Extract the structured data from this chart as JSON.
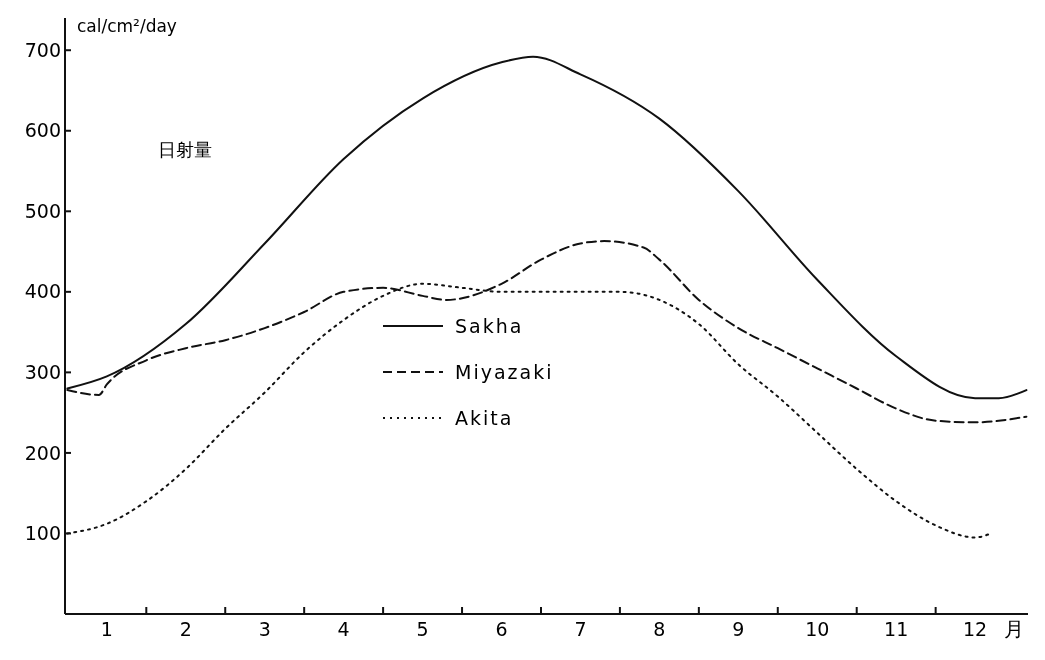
{
  "chart_data": {
    "type": "line",
    "ylabel": "cal/cm²/day",
    "xlabel": "月",
    "annotations": [
      "日射量"
    ],
    "legend": "center",
    "grid": false,
    "marker": "none",
    "xlim": [
      0.47,
      12.67
    ],
    "ylim": [
      0,
      740
    ],
    "xticks": [
      1,
      {
        "value": 1.5,
        "label": null
      },
      2,
      {
        "value": 2.5,
        "label": null
      },
      3,
      {
        "value": 3.5,
        "label": null
      },
      4,
      {
        "value": 4.5,
        "label": null
      },
      5,
      {
        "value": 5.5,
        "label": null
      },
      6,
      {
        "value": 6.5,
        "label": null
      },
      7,
      {
        "value": 7.5,
        "label": null
      },
      8,
      {
        "value": 8.5,
        "label": null
      },
      9,
      {
        "value": 9.5,
        "label": null
      },
      10,
      {
        "value": 10.5,
        "label": null
      },
      11,
      {
        "value": 11.5,
        "label": null
      },
      12
    ],
    "yticks": [
      100,
      200,
      300,
      400,
      500,
      600,
      700
    ],
    "series": [
      {
        "name": "Sakha",
        "color": "#111111",
        "line_style": "solid",
        "x": [
          0.5,
          1,
          2,
          3,
          4,
          5,
          6,
          6.4,
          7,
          8,
          9,
          10,
          11,
          12,
          12.3,
          12.65
        ],
        "values": [
          280,
          295,
          360,
          460,
          565,
          640,
          685,
          692,
          670,
          615,
          525,
          415,
          320,
          268,
          268,
          278
        ]
      },
      {
        "name": "Miyazaki",
        "color": "#111111",
        "line_style": "dashed",
        "x": [
          0.5,
          0.9,
          1,
          1.5,
          2,
          2.5,
          3,
          3.5,
          4,
          4.5,
          5,
          5.3,
          6,
          6.5,
          7,
          7.3,
          7.8,
          8,
          8.5,
          9,
          9.5,
          10,
          10.5,
          11,
          11.5,
          12,
          12.65
        ],
        "values": [
          278,
          272,
          285,
          315,
          330,
          340,
          355,
          375,
          400,
          405,
          395,
          390,
          410,
          440,
          460,
          463,
          455,
          440,
          390,
          355,
          330,
          305,
          280,
          255,
          240,
          238,
          245
        ]
      },
      {
        "name": "Akita",
        "color": "#111111",
        "line_style": "dotted",
        "x": [
          0.5,
          1,
          1.5,
          2,
          2.5,
          3,
          3.5,
          4,
          4.5,
          5,
          5.5,
          6,
          6.5,
          7,
          7.5,
          8,
          8.5,
          9,
          9.5,
          10,
          10.5,
          11,
          11.5,
          12,
          12.2
        ],
        "values": [
          100,
          112,
          140,
          180,
          230,
          275,
          325,
          365,
          395,
          410,
          405,
          400,
          400,
          400,
          400,
          390,
          360,
          310,
          270,
          225,
          180,
          140,
          110,
          95,
          100
        ]
      }
    ]
  }
}
